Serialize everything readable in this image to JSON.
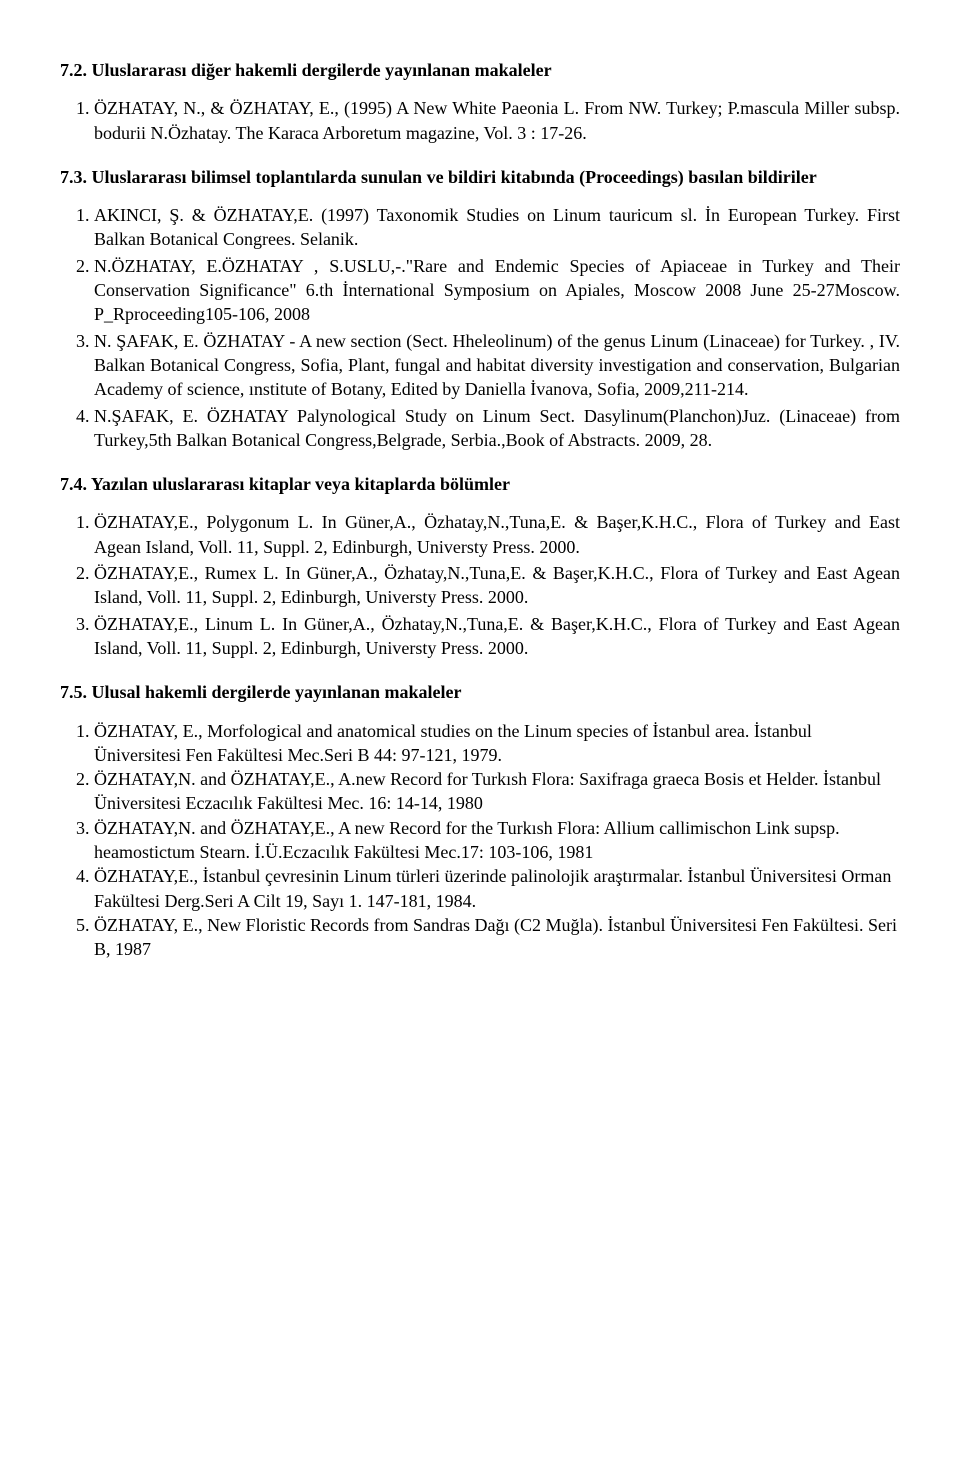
{
  "s72": {
    "heading": "7.2.  Uluslararası diğer hakemli dergilerde yayınlanan makaleler",
    "items": [
      "ÖZHATAY, N., &  ÖZHATAY, E., (1995) A New White Paeonia L. From NW.   Turkey; P.mascula Miller subsp. bodurii N.Özhatay. The Karaca Arboretum magazine, Vol. 3 : 17-26."
    ]
  },
  "s73": {
    "heading": "7.3.  Uluslararası bilimsel toplantılarda sunulan ve bildiri kitabında (Proceedings) basılan   bildiriler",
    "items": [
      "AKINCI, Ş.  &  ÖZHATAY,E.  (1997) Taxonomik Studies on Linum tauricum sl.  İn European Turkey. First Balkan Botanical Congrees. Selanik.",
      "N.ÖZHATAY, E.ÖZHATAY , S.USLU,-.\"Rare and Endemic Species of Apiaceae in Turkey        and Their Conservation Significance\" 6.th İnternational Symposium on Apiales, Moscow 2008 June 25-27Moscow.  P_Rproceeding105-106, 2008",
      "N. ŞAFAK, E.  ÖZHATAY - A new section (Sect.  Hheleolinum) of the genus Linum (Linaceae) for Turkey.  , IV. Balkan Botanical Congress, Sofia, Plant, fungal and habitat diversity investigation and conservation, Bulgarian Academy of science, ınstitute of Botany, Edited by Daniella İvanova, Sofia, 2009,211-214.",
      "N.ŞAFAK,   E.   ÖZHATAY   Palynological   Study   on   Linum   Sect. Dasylinum(Planchon)Juz.   (Linaceae)   from   Turkey,5th   Balkan   Botanical Congress,Belgrade, Serbia.,Book of Abstracts. 2009, 28."
    ]
  },
  "s74": {
    "heading": "7.4.  Yazılan uluslararası kitaplar veya kitaplarda bölümler",
    "items": [
      "ÖZHATAY,E.,  Polygonum  L.  In  Güner,A.,  Özhatay,N.,Tuna,E.  &  Başer,K.H.C., Flora of Turkey and East Agean Island, Voll. 11, Suppl. 2, Edinburgh, Universty Press. 2000.",
      "ÖZHATAY,E., Rumex L. In Güner,A., Özhatay,N.,Tuna,E. & Başer,K.H.C., Flora of Turkey and East Agean Island, Voll. 11, Suppl. 2, Edinburgh, Universty Press. 2000.",
      "ÖZHATAY,E., Linum L. In Güner,A., Özhatay,N.,Tuna,E. & Başer,K.H.C., Flora of Turkey and East Agean Island, Voll. 11, Suppl. 2, Edinburgh, Universty Press. 2000."
    ]
  },
  "s75": {
    "heading": "7.5.  Ulusal hakemli dergilerde yayınlanan makaleler",
    "items": [
      "ÖZHATAY, E.,         Morfological and anatomical studies on the Linum species of İstanbul area. İstanbul Üniversitesi Fen Fakültesi Mec.Seri B 44: 97-121, 1979.",
      "ÖZHATAY,N. and  ÖZHATAY,E.,  A.new Record  for Turkısh Flora: Saxifraga graeca Bosis et Helder. İstanbul Üniversitesi Eczacılık Fakültesi Mec. 16: 14-14, 1980",
      "ÖZHATAY,N. and ÖZHATAY,E.,   A new Record for the Turkısh Flora: Allium callimischon Link supsp. heamostictum Stearn. İ.Ü.Eczacılık Fakültesi Mec.17: 103-106,  1981",
      "ÖZHATAY,E.,    İstanbul çevresinin Linum türleri üzerinde palinolojik araştırmalar. İstanbul Üniversitesi Orman Fakültesi Derg.Seri A Cilt 19, Sayı 1. 147-181,  1984.",
      "ÖZHATAY, E.,    New Floristic Records from Sandras Dağı (C2 Muğla). İstanbul Üniversitesi Fen Fakültesi.  Seri B,   1987"
    ]
  }
}
